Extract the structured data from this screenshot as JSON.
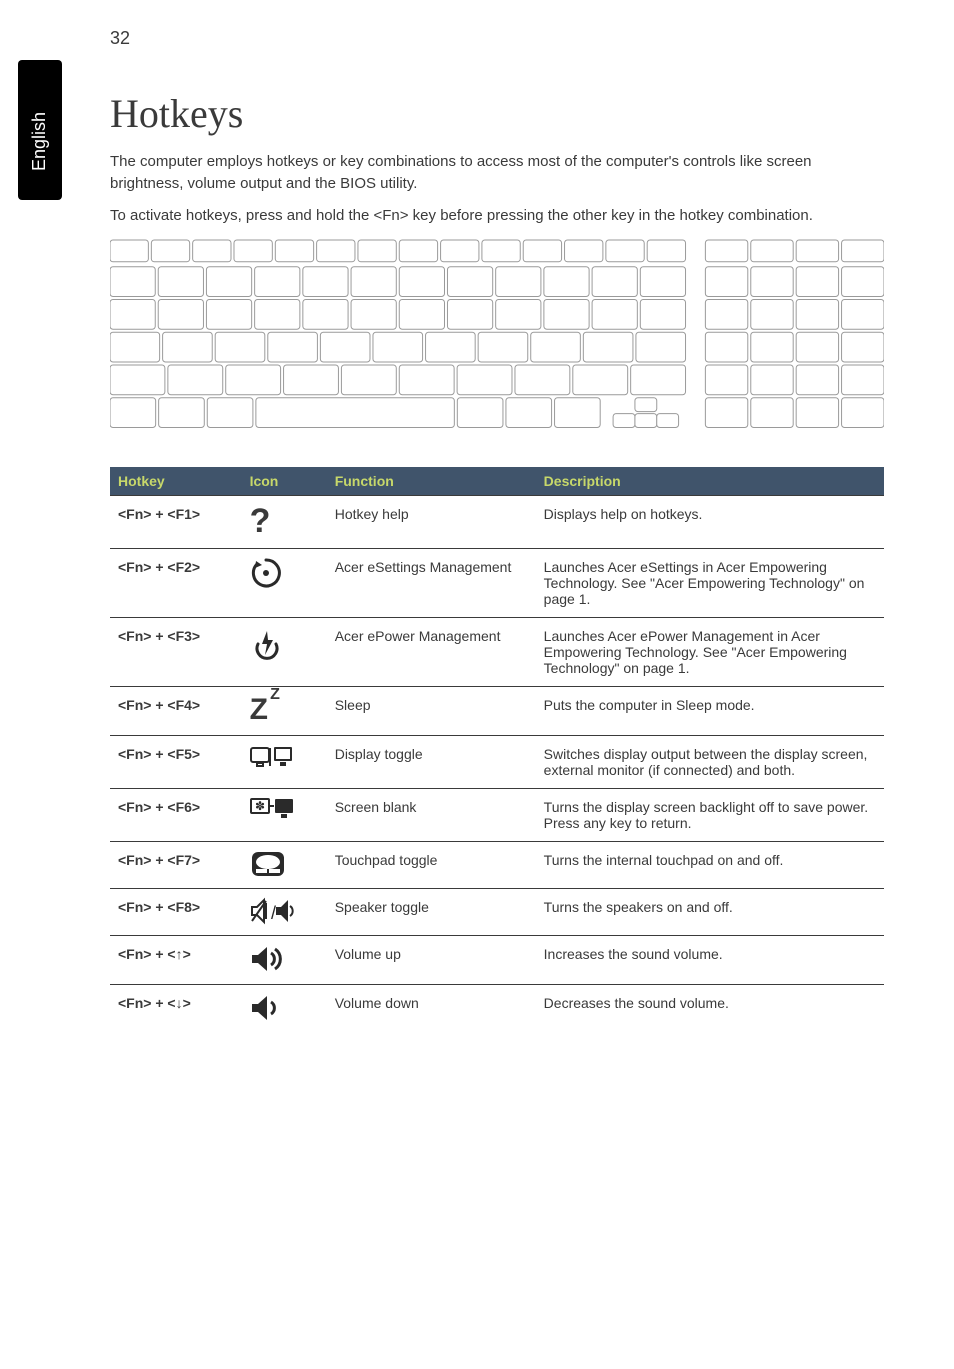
{
  "page_number": "32",
  "side_tab": "English",
  "heading": "Hotkeys",
  "intro_paragraphs": [
    "The computer employs hotkeys or key combinations to access most of the computer's controls like screen brightness, volume output and the BIOS utility.",
    "To activate hotkeys, press and hold the <Fn> key before pressing the other key in the hotkey combination."
  ],
  "keyboard_diagram": {
    "rows": 6,
    "row_key_counts": [
      18,
      16,
      16,
      15,
      14,
      10
    ],
    "outline_color": "#9a9a9a",
    "fill_color": "#ffffff",
    "background": "#ffffff"
  },
  "table": {
    "header_bg": "#40546b",
    "header_fg": "#c7d86a",
    "row_border": "#3a3a3a",
    "columns": [
      "Hotkey",
      "Icon",
      "Function",
      "Description"
    ],
    "rows": [
      {
        "hotkey": "<Fn> + <F1>",
        "icon": "question",
        "function": "Hotkey help",
        "description": "Displays help on hotkeys."
      },
      {
        "hotkey": "<Fn> + <F2>",
        "icon": "esettings",
        "function": "Acer eSettings Management",
        "description": "Launches Acer eSettings in Acer Empowering Technology. See \"Acer Empowering Technology\" on page 1."
      },
      {
        "hotkey": "<Fn> + <F3>",
        "icon": "epower",
        "function": "Acer ePower Management",
        "description": "Launches Acer ePower Management in Acer Empowering Technology. See \"Acer Empowering Technology\" on page 1."
      },
      {
        "hotkey": "<Fn> + <F4>",
        "icon": "sleep",
        "function": "Sleep",
        "description": "Puts the computer in Sleep mode."
      },
      {
        "hotkey": "<Fn> + <F5>",
        "icon": "display-toggle",
        "function": "Display toggle",
        "description": "Switches display output between the display screen, external monitor (if connected) and both."
      },
      {
        "hotkey": "<Fn> + <F6>",
        "icon": "screen-blank",
        "function": "Screen blank",
        "description": "Turns the display screen backlight off to save power. Press any key to return."
      },
      {
        "hotkey": "<Fn> + <F7>",
        "icon": "touchpad",
        "function": "Touchpad toggle",
        "description": "Turns the internal touchpad on and off."
      },
      {
        "hotkey": "<Fn> + <F8>",
        "icon": "speaker-toggle",
        "function": "Speaker toggle",
        "description": "Turns the speakers on and off."
      },
      {
        "hotkey": "<Fn> + <↑>",
        "icon": "volume-up",
        "function": "Volume up",
        "description": "Increases the sound volume."
      },
      {
        "hotkey": "<Fn> + <↓>",
        "icon": "volume-down",
        "function": "Volume down",
        "description": "Decreases the sound volume."
      }
    ]
  },
  "icons": {
    "question": "?",
    "sleep": "Zᶻ"
  },
  "colors": {
    "text": "#3a3a3a",
    "page_bg": "#ffffff",
    "tab_bg": "#000000",
    "tab_fg": "#ffffff"
  },
  "typography": {
    "body_font": "Arial",
    "heading_font": "Georgia",
    "heading_size_pt": 30,
    "body_size_pt": 11,
    "table_size_pt": 10.5
  }
}
